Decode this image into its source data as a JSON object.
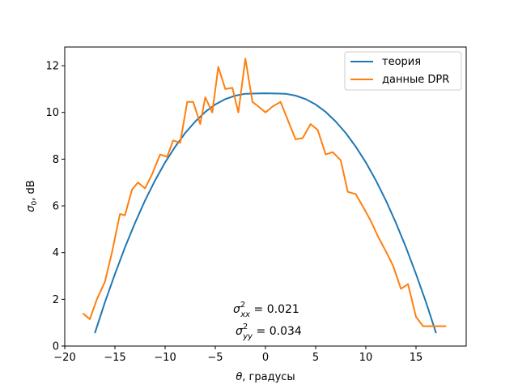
{
  "chart_data": {
    "type": "line",
    "xlabel_symbol": "θ",
    "xlabel_text": ", градусы",
    "ylabel_symbol": "σ",
    "ylabel_sub": "0",
    "ylabel_text": ", dB",
    "xlim": [
      -20,
      20
    ],
    "ylim": [
      0,
      12.8
    ],
    "xticks": [
      -20,
      -15,
      -10,
      -5,
      0,
      5,
      10,
      15
    ],
    "yticks": [
      0,
      2,
      4,
      6,
      8,
      10,
      12
    ],
    "xtick_labels": [
      "−20",
      "−15",
      "−10",
      "−5",
      "0",
      "5",
      "10",
      "15"
    ],
    "ytick_labels": [
      "0",
      "2",
      "4",
      "6",
      "8",
      "10",
      "12"
    ],
    "grid": false,
    "legend_position": "top-right",
    "series": [
      {
        "name": "теория",
        "color": "#1f77b4",
        "x": [
          -17,
          -16,
          -15,
          -14,
          -13,
          -12,
          -11,
          -10,
          -9,
          -8,
          -7,
          -6,
          -5,
          -4,
          -3,
          -2,
          -1,
          0,
          1,
          2,
          3,
          4,
          5,
          6,
          7,
          8,
          9,
          10,
          11,
          12,
          13,
          14,
          15,
          16,
          17
        ],
        "y": [
          0.55,
          1.87,
          3.08,
          4.22,
          5.27,
          6.23,
          7.09,
          7.86,
          8.53,
          9.12,
          9.61,
          10.02,
          10.34,
          10.57,
          10.72,
          10.8,
          10.81,
          10.82,
          10.81,
          10.8,
          10.72,
          10.57,
          10.34,
          10.02,
          9.61,
          9.12,
          8.53,
          7.86,
          7.09,
          6.23,
          5.27,
          4.22,
          3.08,
          1.87,
          0.55
        ]
      },
      {
        "name": "данные DPR",
        "color": "#ff7f0e",
        "x": [
          -18.2,
          -17.5,
          -16.8,
          -16.0,
          -15.3,
          -14.5,
          -14.0,
          -13.3,
          -12.7,
          -12.0,
          -11.3,
          -10.5,
          -9.8,
          -9.2,
          -8.5,
          -7.8,
          -7.2,
          -6.5,
          -6.0,
          -5.3,
          -4.7,
          -4.0,
          -3.3,
          -2.7,
          -2.0,
          -1.3,
          -0.7,
          0.0,
          0.7,
          1.5,
          2.2,
          3.0,
          3.7,
          4.5,
          5.2,
          6.0,
          6.7,
          7.5,
          8.2,
          9.0,
          9.8,
          10.5,
          11.2,
          12.0,
          12.7,
          13.5,
          14.2,
          15.0,
          15.7,
          16.5,
          17.2,
          18.0
        ],
        "y": [
          1.4,
          1.15,
          2.0,
          2.75,
          4.0,
          5.65,
          5.6,
          6.7,
          7.0,
          6.75,
          7.35,
          8.2,
          8.1,
          8.8,
          8.7,
          10.45,
          10.45,
          9.5,
          10.65,
          10.0,
          11.95,
          11.0,
          11.05,
          10.0,
          12.3,
          10.45,
          10.25,
          10.0,
          10.25,
          10.45,
          9.7,
          8.85,
          8.9,
          9.5,
          9.25,
          8.2,
          8.3,
          7.95,
          6.6,
          6.5,
          5.9,
          5.35,
          4.7,
          4.05,
          3.45,
          2.45,
          2.65,
          1.25,
          0.85,
          0.85,
          0.85,
          0.85
        ]
      }
    ],
    "annotations": {
      "line1_main": "σ",
      "line1_sup": "2",
      "line1_sub": "xx",
      "line1_value": " = 0.021",
      "line2_main": "σ",
      "line2_sup": "2",
      "line2_sub": "yy",
      "line2_value": " = 0.034"
    }
  }
}
